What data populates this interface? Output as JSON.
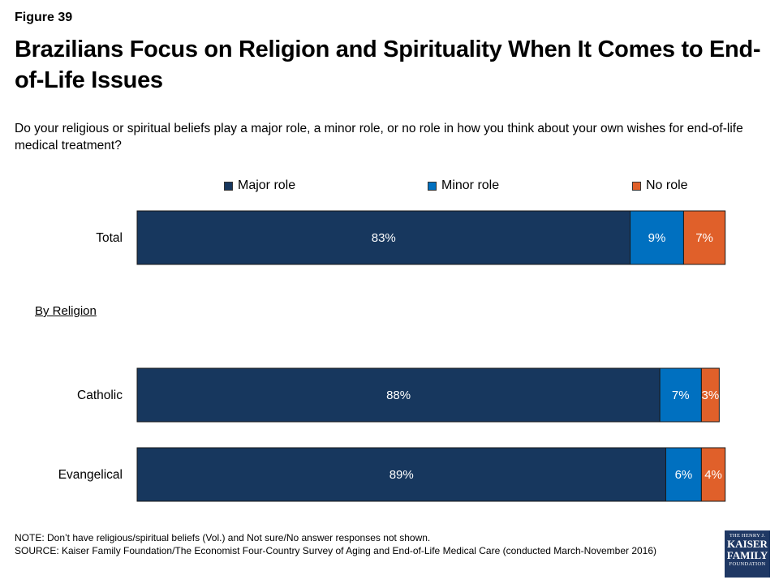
{
  "figure_label": "Figure 39",
  "title": "Brazilians Focus on Religion and Spirituality When It Comes to End-of-Life Issues",
  "subtitle": "Do your religious or spiritual beliefs play a major role, a minor role, or no role in how you think about your own wishes for end-of-life medical treatment?",
  "group_label": "By Religion",
  "note": "NOTE: Don’t have religious/spiritual beliefs (Vol.) and Not sure/No answer responses not shown.",
  "source": "SOURCE: Kaiser Family Foundation/The Economist Four-Country Survey of Aging and End-of-Life Medical Care (conducted March-November 2016)",
  "logo": {
    "line1": "THE HENRY J.",
    "line2": "KAISER",
    "line3": "FAMILY",
    "line4": "FOUNDATION"
  },
  "colors": {
    "major": "#17375e",
    "minor": "#0070c0",
    "none": "#e0602a",
    "logo": "#1f3864"
  },
  "chart_data": {
    "type": "bar",
    "orientation": "horizontal",
    "stacked": true,
    "categories": [
      "Total",
      "Catholic",
      "Evangelical"
    ],
    "series": [
      {
        "name": "Major role",
        "values": [
          83,
          88,
          89
        ],
        "labels": [
          "83%",
          "88%",
          "89%"
        ],
        "color": "#17375e"
      },
      {
        "name": "Minor role",
        "values": [
          9,
          7,
          6
        ],
        "labels": [
          "9%",
          "7%",
          "6%"
        ],
        "color": "#0070c0"
      },
      {
        "name": "No role",
        "values": [
          7,
          3,
          4
        ],
        "labels": [
          "7%",
          "3%",
          "4%"
        ],
        "color": "#e0602a"
      }
    ],
    "xlim": [
      0,
      100
    ],
    "legend": "top",
    "grid": false
  }
}
